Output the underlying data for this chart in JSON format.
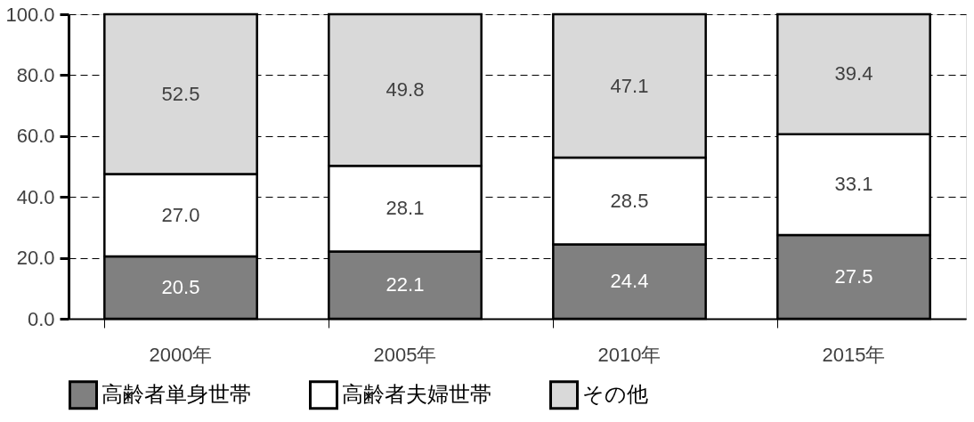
{
  "chart_data": {
    "type": "bar",
    "stacked": true,
    "categories": [
      "2000年",
      "2005年",
      "2010年",
      "2015年"
    ],
    "series": [
      {
        "name": "高齢者単身世帯",
        "color": "#808080",
        "values": [
          20.5,
          22.1,
          24.4,
          27.5
        ],
        "value_labels": [
          "20.5",
          "22.1",
          "24.4",
          "27.5"
        ]
      },
      {
        "name": "高齢者夫婦世帯",
        "color": "#ffffff",
        "values": [
          27.0,
          28.1,
          28.5,
          33.1
        ],
        "value_labels": [
          "27.0",
          "28.1",
          "28.5",
          "33.1"
        ]
      },
      {
        "name": "その他",
        "color": "#d9d9d9",
        "values": [
          52.5,
          49.8,
          47.1,
          39.4
        ],
        "value_labels": [
          "52.5",
          "49.8",
          "47.1",
          "39.4"
        ]
      }
    ],
    "ylim": [
      0,
      100
    ],
    "yticks": [
      {
        "value": 0,
        "label": "0.0"
      },
      {
        "value": 20,
        "label": "20.0"
      },
      {
        "value": 40,
        "label": "40.0"
      },
      {
        "value": 60,
        "label": "60.0"
      },
      {
        "value": 80,
        "label": "80.0"
      },
      {
        "value": 100,
        "label": "100.0"
      }
    ],
    "grid": true,
    "legend": "bottom"
  }
}
